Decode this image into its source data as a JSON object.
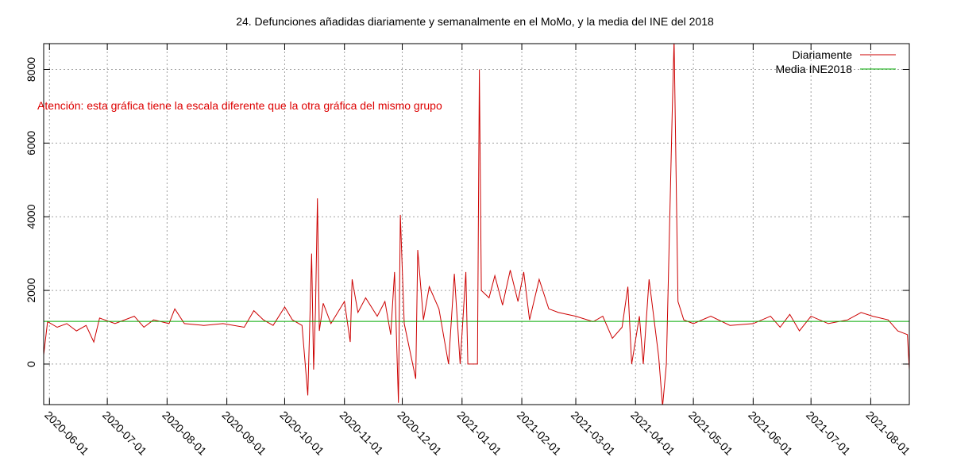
{
  "chart_data": {
    "type": "line",
    "title": "24. Defunciones añadidas diariamente y semanalmente en el MoMo, y la media del INE del 2018",
    "annotation": "Atención: esta gráfica tiene la escala diferente que la otra gráfica del mismo grupo",
    "xlabel": "",
    "ylabel": "",
    "x_range": [
      "2020-05-29",
      "2021-08-21"
    ],
    "x_ticks": [
      "2020-06-01",
      "2020-07-01",
      "2020-08-01",
      "2020-09-01",
      "2020-10-01",
      "2020-11-01",
      "2020-12-01",
      "2021-01-01",
      "2021-02-01",
      "2021-03-01",
      "2021-04-01",
      "2021-05-01",
      "2021-06-01",
      "2021-07-01",
      "2021-08-01"
    ],
    "ylim": [
      -1100,
      8700
    ],
    "y_ticks": [
      0,
      2000,
      4000,
      6000,
      8000
    ],
    "grid": true,
    "legend_position": "top-right",
    "series": [
      {
        "name": "Diariamente",
        "color": "#cc0000",
        "points": [
          [
            "2020-05-29",
            250
          ],
          [
            "2020-05-31",
            1150
          ],
          [
            "2020-06-05",
            1000
          ],
          [
            "2020-06-10",
            1100
          ],
          [
            "2020-06-15",
            900
          ],
          [
            "2020-06-20",
            1050
          ],
          [
            "2020-06-24",
            600
          ],
          [
            "2020-06-27",
            1250
          ],
          [
            "2020-07-05",
            1100
          ],
          [
            "2020-07-15",
            1300
          ],
          [
            "2020-07-20",
            1000
          ],
          [
            "2020-07-25",
            1200
          ],
          [
            "2020-08-02",
            1100
          ],
          [
            "2020-08-05",
            1500
          ],
          [
            "2020-08-10",
            1100
          ],
          [
            "2020-08-20",
            1050
          ],
          [
            "2020-08-30",
            1100
          ],
          [
            "2020-09-10",
            1000
          ],
          [
            "2020-09-15",
            1450
          ],
          [
            "2020-09-20",
            1200
          ],
          [
            "2020-09-25",
            1050
          ],
          [
            "2020-10-01",
            1550
          ],
          [
            "2020-10-05",
            1200
          ],
          [
            "2020-10-10",
            1050
          ],
          [
            "2020-10-13",
            -850
          ],
          [
            "2020-10-15",
            3000
          ],
          [
            "2020-10-16",
            -150
          ],
          [
            "2020-10-17",
            1500
          ],
          [
            "2020-10-18",
            4500
          ],
          [
            "2020-10-19",
            900
          ],
          [
            "2020-10-21",
            1650
          ],
          [
            "2020-10-25",
            1100
          ],
          [
            "2020-11-01",
            1700
          ],
          [
            "2020-11-04",
            600
          ],
          [
            "2020-11-05",
            2300
          ],
          [
            "2020-11-08",
            1400
          ],
          [
            "2020-11-12",
            1800
          ],
          [
            "2020-11-18",
            1300
          ],
          [
            "2020-11-22",
            1700
          ],
          [
            "2020-11-25",
            800
          ],
          [
            "2020-11-27",
            2500
          ],
          [
            "2020-11-29",
            -1050
          ],
          [
            "2020-11-30",
            4050
          ],
          [
            "2020-12-02",
            1100
          ],
          [
            "2020-12-08",
            -400
          ],
          [
            "2020-12-09",
            3100
          ],
          [
            "2020-12-12",
            1200
          ],
          [
            "2020-12-15",
            2100
          ],
          [
            "2020-12-20",
            1500
          ],
          [
            "2020-12-25",
            0
          ],
          [
            "2020-12-28",
            2450
          ],
          [
            "2020-12-31",
            0
          ],
          [
            "2021-01-03",
            2500
          ],
          [
            "2021-01-04",
            0
          ],
          [
            "2021-01-09",
            0
          ],
          [
            "2021-01-10",
            8000
          ],
          [
            "2021-01-11",
            2000
          ],
          [
            "2021-01-15",
            1800
          ],
          [
            "2021-01-18",
            2400
          ],
          [
            "2021-01-22",
            1600
          ],
          [
            "2021-01-26",
            2550
          ],
          [
            "2021-01-30",
            1700
          ],
          [
            "2021-02-02",
            2500
          ],
          [
            "2021-02-05",
            1200
          ],
          [
            "2021-02-10",
            2300
          ],
          [
            "2021-02-15",
            1500
          ],
          [
            "2021-02-20",
            1400
          ],
          [
            "2021-03-01",
            1300
          ],
          [
            "2021-03-10",
            1150
          ],
          [
            "2021-03-15",
            1300
          ],
          [
            "2021-03-20",
            700
          ],
          [
            "2021-03-25",
            1000
          ],
          [
            "2021-03-28",
            2100
          ],
          [
            "2021-03-30",
            0
          ],
          [
            "2021-04-03",
            1300
          ],
          [
            "2021-04-05",
            0
          ],
          [
            "2021-04-08",
            2300
          ],
          [
            "2021-04-13",
            200
          ],
          [
            "2021-04-15",
            -1150
          ],
          [
            "2021-04-17",
            0
          ],
          [
            "2021-04-20",
            6800
          ],
          [
            "2021-04-21",
            8800
          ],
          [
            "2021-04-23",
            1700
          ],
          [
            "2021-04-26",
            1200
          ],
          [
            "2021-05-01",
            1100
          ],
          [
            "2021-05-10",
            1300
          ],
          [
            "2021-05-20",
            1050
          ],
          [
            "2021-06-01",
            1100
          ],
          [
            "2021-06-10",
            1300
          ],
          [
            "2021-06-15",
            1000
          ],
          [
            "2021-06-20",
            1350
          ],
          [
            "2021-06-25",
            900
          ],
          [
            "2021-07-01",
            1300
          ],
          [
            "2021-07-10",
            1100
          ],
          [
            "2021-07-20",
            1200
          ],
          [
            "2021-07-27",
            1400
          ],
          [
            "2021-08-02",
            1300
          ],
          [
            "2021-08-10",
            1200
          ],
          [
            "2021-08-15",
            900
          ],
          [
            "2021-08-20",
            800
          ],
          [
            "2021-08-21",
            -150
          ]
        ]
      },
      {
        "name": "Media INE2018",
        "color": "#00aa00",
        "points": [
          [
            "2020-05-29",
            1160
          ],
          [
            "2021-08-21",
            1160
          ]
        ]
      }
    ]
  }
}
